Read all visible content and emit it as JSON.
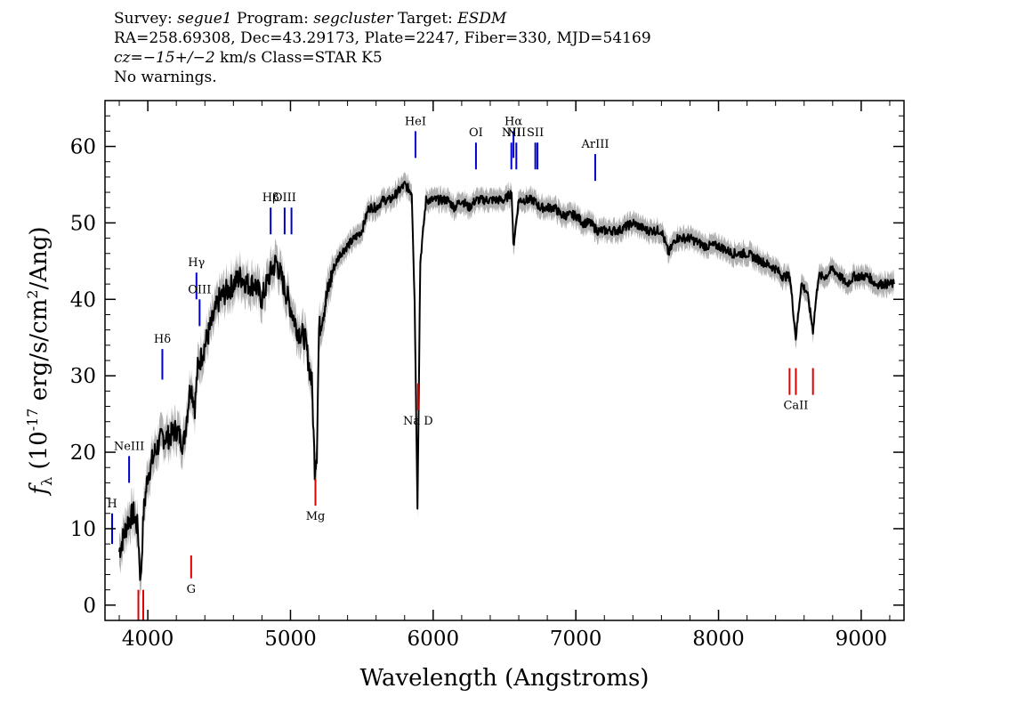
{
  "header": {
    "line1_survey_label": "Survey: ",
    "line1_survey_value": "segue1",
    "line1_program_label": " Program: ",
    "line1_program_value": "segcluster",
    "line1_target_label": " Target: ",
    "line1_target_value": "ESDM",
    "line2": "RA=258.69308, Dec=43.29173, Plate=2247, Fiber=330, MJD=54169",
    "line3_cz_value": "cz=−15+/−2",
    "line3_rest": " km/s Class=STAR K5",
    "line4": "No warnings."
  },
  "chart_data": {
    "type": "line",
    "title": "",
    "xlabel": "Wavelength (Angstroms)",
    "ylabel": "f_λ (10^-17 erg/s/cm^2/Ang)",
    "xlim": [
      3700,
      9300
    ],
    "ylim": [
      -2,
      66
    ],
    "x_ticks": [
      4000,
      5000,
      6000,
      7000,
      8000,
      9000
    ],
    "y_ticks": [
      0,
      10,
      20,
      30,
      40,
      50,
      60
    ],
    "grid": false,
    "colors": {
      "flux": "#000000",
      "error_band": "#b0b0b0",
      "emission": "#0000cc",
      "absorption": "#dd0000"
    },
    "series": [
      {
        "x": [
          3800,
          3830,
          3860,
          3900,
          3930,
          3950,
          3970,
          4000,
          4050,
          4100,
          4150,
          4200,
          4250,
          4300,
          4330,
          4350,
          4400,
          4450,
          4500,
          4550,
          4600,
          4650,
          4700,
          4750,
          4800,
          4850,
          4900,
          4950,
          5000,
          5050,
          5100,
          5150,
          5170,
          5185,
          5200,
          5250,
          5300,
          5350,
          5400,
          5450,
          5500,
          5550,
          5600,
          5650,
          5700,
          5750,
          5800,
          5850,
          5870,
          5890,
          5910,
          5950,
          6000,
          6050,
          6100,
          6150,
          6200,
          6250,
          6300,
          6350,
          6400,
          6450,
          6500,
          6550,
          6562,
          6600,
          6650,
          6700,
          6750,
          6800,
          6850,
          6900,
          6950,
          7000,
          7050,
          7100,
          7150,
          7200,
          7300,
          7400,
          7500,
          7600,
          7650,
          7700,
          7800,
          7900,
          8000,
          8100,
          8200,
          8300,
          8400,
          8450,
          8500,
          8542,
          8580,
          8620,
          8662,
          8700,
          8750,
          8800,
          8850,
          8900,
          8950,
          9000,
          9050,
          9100,
          9150,
          9200,
          9230
        ],
        "y": [
          7,
          9,
          11,
          12,
          10,
          3,
          12,
          17,
          20,
          22,
          22,
          23,
          21,
          29,
          26,
          31,
          34,
          37,
          40,
          41,
          42,
          43,
          42,
          42,
          40,
          43,
          45,
          42,
          39,
          36,
          35,
          29,
          18,
          20,
          36,
          40,
          44,
          46,
          47,
          48,
          49,
          52,
          52,
          53,
          53,
          54,
          55,
          54,
          40,
          13,
          45,
          53,
          53,
          53,
          53,
          52,
          53,
          52,
          53,
          53,
          53,
          53,
          53,
          54,
          47,
          53,
          53,
          53,
          52,
          52,
          52,
          51,
          51,
          51,
          50,
          50,
          49,
          49,
          49,
          50,
          49,
          49,
          46,
          48,
          48,
          47,
          47,
          46,
          46,
          45,
          44,
          43,
          43,
          35,
          42,
          41,
          36,
          43,
          43,
          44,
          43,
          42,
          43,
          43,
          43,
          42,
          42,
          42,
          42
        ]
      }
    ],
    "emission_lines": [
      {
        "label": "H",
        "x": 3750,
        "ymin": 8,
        "ymax": 12
      },
      {
        "label": "NeIII",
        "x": 3869,
        "ymin": 16,
        "ymax": 19.5
      },
      {
        "label": "Hδ",
        "x": 4102,
        "ymin": 29.5,
        "ymax": 33.5
      },
      {
        "label": "Hγ",
        "x": 4341,
        "ymin": 40,
        "ymax": 43.5
      },
      {
        "label": "OIII",
        "x": 4363,
        "ymin": 36.5,
        "ymax": 40
      },
      {
        "label": "Hβ",
        "x": 4861,
        "ymin": 48.5,
        "ymax": 52
      },
      {
        "label": "OIII",
        "x": 4959,
        "ymin": 48.5,
        "ymax": 52
      },
      {
        "label": "",
        "x": 5007,
        "ymin": 48.5,
        "ymax": 52
      },
      {
        "label": "HeI",
        "x": 5876,
        "ymin": 58.5,
        "ymax": 62
      },
      {
        "label": "OI",
        "x": 6300,
        "ymin": 57,
        "ymax": 60.5
      },
      {
        "label": "NII",
        "x": 6548,
        "ymin": 57,
        "ymax": 60.5
      },
      {
        "label": "Hα",
        "x": 6563,
        "ymin": 58.5,
        "ymax": 62
      },
      {
        "label": "NII",
        "x": 6583,
        "ymin": 57,
        "ymax": 60.5
      },
      {
        "label": "SII",
        "x": 6716,
        "ymin": 57,
        "ymax": 60.5
      },
      {
        "label": "",
        "x": 6731,
        "ymin": 57,
        "ymax": 60.5
      },
      {
        "label": "ArIII",
        "x": 7136,
        "ymin": 55.5,
        "ymax": 59
      }
    ],
    "absorption_lines": [
      {
        "label": "",
        "x": 3934,
        "ymin": -2,
        "ymax": 2
      },
      {
        "label": "",
        "x": 3968,
        "ymin": -2,
        "ymax": 2
      },
      {
        "label": "G",
        "x": 4304,
        "ymin": 3.5,
        "ymax": 6.5
      },
      {
        "label": "Mg",
        "x": 5175,
        "ymin": 13,
        "ymax": 16.5
      },
      {
        "label": "Na D",
        "x": 5894,
        "ymin": 25.5,
        "ymax": 29
      },
      {
        "label": "",
        "x": 8498,
        "ymin": 27.5,
        "ymax": 31
      },
      {
        "label": "CaII",
        "x": 8542,
        "ymin": 27.5,
        "ymax": 31
      },
      {
        "label": "",
        "x": 8662,
        "ymin": 27.5,
        "ymax": 31
      }
    ]
  }
}
